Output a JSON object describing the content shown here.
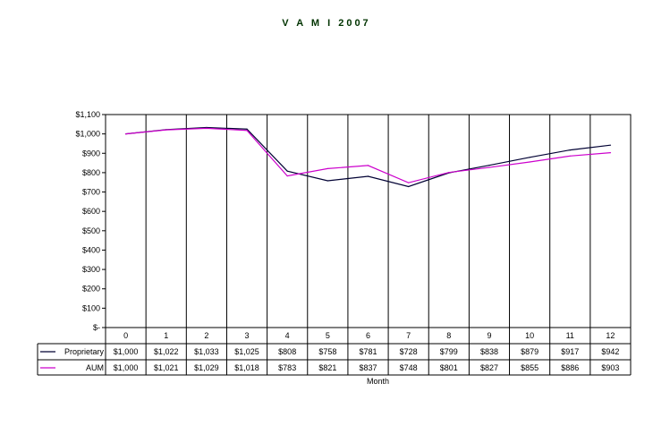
{
  "chart_data": {
    "type": "line",
    "title": "V A M I   2007",
    "xlabel": "Month",
    "ylabel": "",
    "categories": [
      "0",
      "1",
      "2",
      "3",
      "4",
      "5",
      "6",
      "7",
      "8",
      "9",
      "10",
      "11",
      "12"
    ],
    "y_ticks": [
      "$1,100",
      "$1,000",
      "$900",
      "$800",
      "$700",
      "$600",
      "$500",
      "$400",
      "$300",
      "$200",
      "$100",
      "$-"
    ],
    "ylim": [
      0,
      1100
    ],
    "grid": "vertical",
    "legend": "data-table",
    "series": [
      {
        "name": "Proprietary",
        "color": "#000033",
        "values": [
          1000,
          1022,
          1033,
          1025,
          808,
          758,
          781,
          728,
          799,
          838,
          879,
          917,
          942
        ],
        "labels": [
          "$1,000",
          "$1,022",
          "$1,033",
          "$1,025",
          "$808",
          "$758",
          "$781",
          "$728",
          "$799",
          "$838",
          "$879",
          "$917",
          "$942"
        ]
      },
      {
        "name": "AUM",
        "color": "#cc00cc",
        "values": [
          1000,
          1021,
          1029,
          1018,
          783,
          821,
          837,
          748,
          801,
          827,
          855,
          886,
          903
        ],
        "labels": [
          "$1,000",
          "$1,021",
          "$1,029",
          "$1,018",
          "$783",
          "$821",
          "$837",
          "$748",
          "$801",
          "$827",
          "$855",
          "$886",
          "$903"
        ]
      }
    ]
  }
}
